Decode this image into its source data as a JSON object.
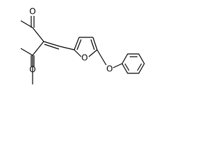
{
  "atoms": [
    {
      "symbol": "O"
    },
    {
      "symbol": "O"
    },
    {
      "symbol": "O"
    },
    {
      "symbol": "O"
    }
  ]
}
